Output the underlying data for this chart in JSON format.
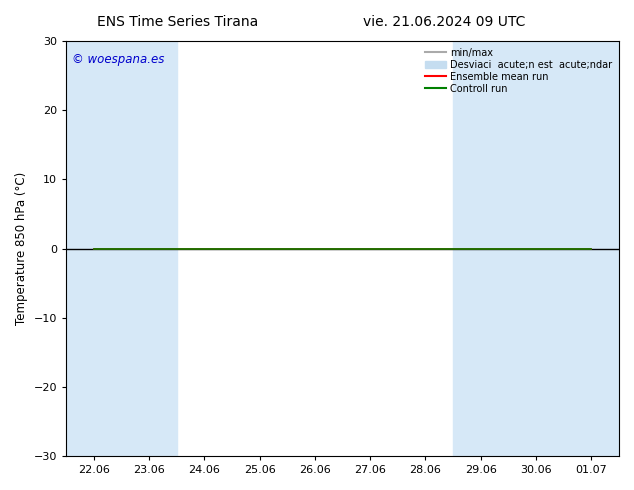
{
  "title_left": "ENS Time Series Tirana",
  "title_right": "vie. 21.06.2024 09 UTC",
  "ylabel": "Temperature 850 hPa (°C)",
  "ylim": [
    -30,
    30
  ],
  "yticks": [
    -30,
    -20,
    -10,
    0,
    10,
    20,
    30
  ],
  "xtick_labels": [
    "22.06",
    "23.06",
    "24.06",
    "25.06",
    "26.06",
    "27.06",
    "28.06",
    "29.06",
    "30.06",
    "01.07"
  ],
  "bg_color": "#ffffff",
  "plot_bg_color": "#ffffff",
  "band_color": "#d6e8f7",
  "shaded_x_indices": [
    0,
    1,
    7,
    8,
    9
  ],
  "zero_line_color": "#000000",
  "ensemble_mean_color": "#ff0000",
  "control_run_color": "#008000",
  "minmax_color": "#aaaaaa",
  "deviation_color": "#c5ddf0",
  "watermark_text": "© woespana.es",
  "watermark_color": "#0000cc",
  "x_values": [
    0,
    1,
    2,
    3,
    4,
    5,
    6,
    7,
    8,
    9
  ],
  "ensemble_mean_y": [
    0,
    0,
    0,
    0,
    0,
    0,
    0,
    0,
    0,
    0
  ],
  "control_run_y": [
    0,
    0,
    0,
    0,
    0,
    0,
    0,
    0,
    0,
    0
  ],
  "legend_minmax": "min/max",
  "legend_desv": "Desviaci  acute;n est  acute;ndar",
  "legend_ensemble": "Ensemble mean run",
  "legend_control": "Controll run"
}
